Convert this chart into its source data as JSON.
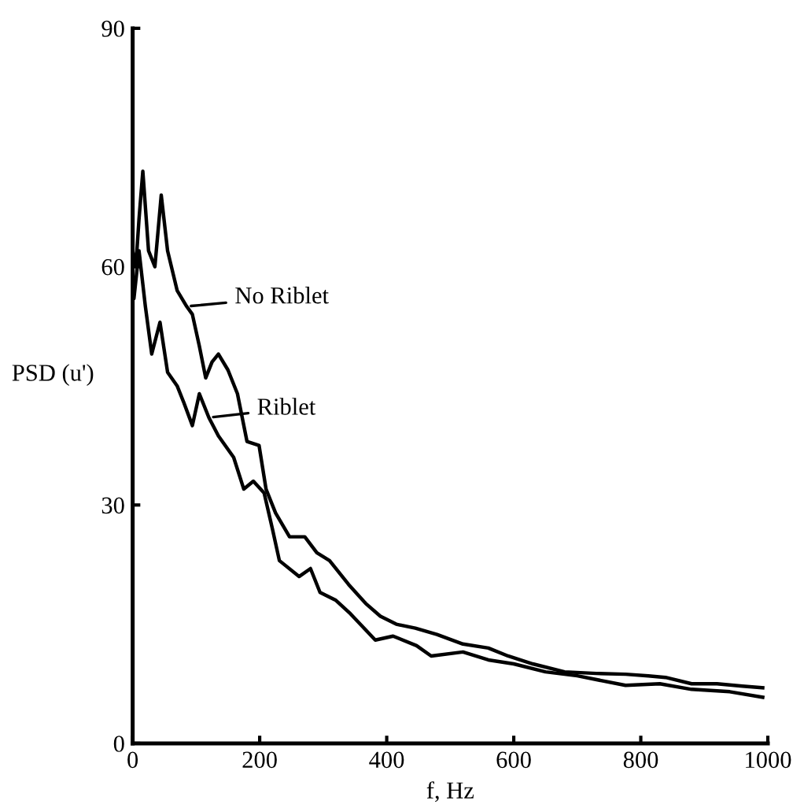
{
  "chart_data": {
    "type": "line",
    "xlabel": "f, Hz",
    "ylabel": "PSD (u')",
    "xlim": [
      0,
      1000
    ],
    "xticks": [
      0,
      200,
      400,
      600,
      800,
      1000
    ],
    "ylim": [
      0,
      90
    ],
    "yticks": [
      0,
      30,
      60,
      90
    ],
    "grid": false,
    "legend": "left",
    "marker": "none",
    "line_style": "solid",
    "series": [
      {
        "name": "No Riblet",
        "color": "#000000",
        "x": [
          0,
          5,
          10,
          16,
          25,
          35,
          45,
          55,
          70,
          85,
          94,
          105,
          115,
          125,
          135,
          150,
          165,
          180,
          199,
          210,
          225,
          247,
          271,
          290,
          310,
          340,
          367,
          390,
          415,
          445,
          479,
          520,
          560,
          591,
          630,
          680,
          730,
          776,
          812,
          839,
          880,
          920,
          960,
          992
        ],
        "values": [
          62,
          60,
          66,
          72,
          62,
          60,
          69,
          62,
          57,
          55,
          54,
          50,
          46,
          48,
          49,
          47,
          44,
          38,
          37.5,
          32,
          29,
          26,
          26,
          24,
          23,
          20,
          17.6,
          16,
          15,
          14.5,
          13.7,
          12.5,
          12,
          11,
          10,
          9,
          8.8,
          8.7,
          8.5,
          8.3,
          7.5,
          7.5,
          7.2,
          7
        ]
      },
      {
        "name": "Riblet",
        "color": "#000000",
        "x": [
          0,
          2,
          10,
          20,
          30,
          43,
          55,
          70,
          80,
          94,
          105,
          120,
          135,
          159,
          175,
          190,
          207,
          220,
          231,
          262,
          280,
          295,
          320,
          343,
          382,
          410,
          447,
          470,
          520,
          560,
          600,
          650,
          700,
          776,
          830,
          880,
          940,
          992
        ],
        "values": [
          58,
          56,
          62,
          55,
          49,
          53,
          46.7,
          45,
          43,
          40,
          44,
          41,
          38.7,
          36,
          32,
          33,
          31.5,
          27,
          23,
          21,
          22,
          19,
          18,
          16.3,
          13,
          13.5,
          12.3,
          11,
          11.5,
          10.5,
          10,
          9,
          8.5,
          7.3,
          7.5,
          6.8,
          6.5,
          5.8
        ]
      }
    ]
  }
}
